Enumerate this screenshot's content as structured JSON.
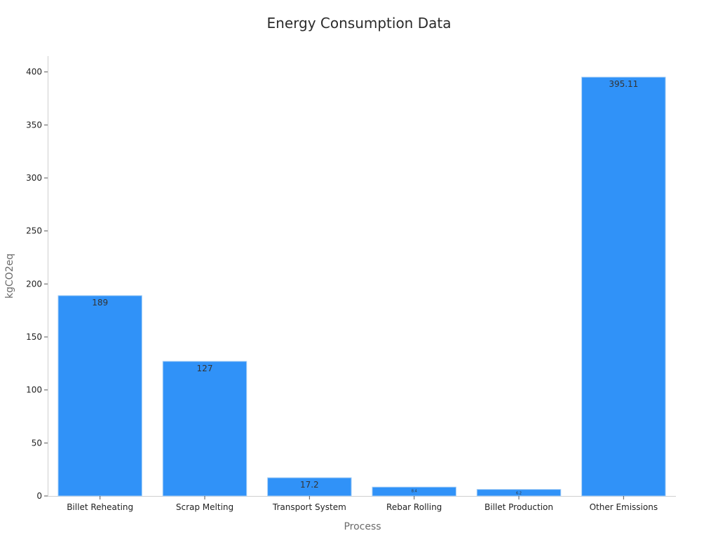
{
  "chart_data": {
    "type": "bar",
    "title": "Energy Consumption Data",
    "xlabel": "Process",
    "ylabel": "kgCO2eq",
    "categories": [
      "Billet Reheating",
      "Scrap Melting",
      "Transport System",
      "Rebar Rolling",
      "Billet Production",
      "Other Emissions"
    ],
    "values": [
      189,
      127,
      17.2,
      8.4,
      6.2,
      395.11
    ],
    "value_labels": [
      "189",
      "127",
      "17.2",
      "8.4",
      "6.2",
      "395.11"
    ],
    "ylim": [
      0,
      415
    ],
    "yticks": [
      0,
      50,
      100,
      150,
      200,
      250,
      300,
      350,
      400
    ],
    "grid": false,
    "legend": "none",
    "bar_color": "#3092f8",
    "bar_edge_color": "#a8cff5"
  }
}
